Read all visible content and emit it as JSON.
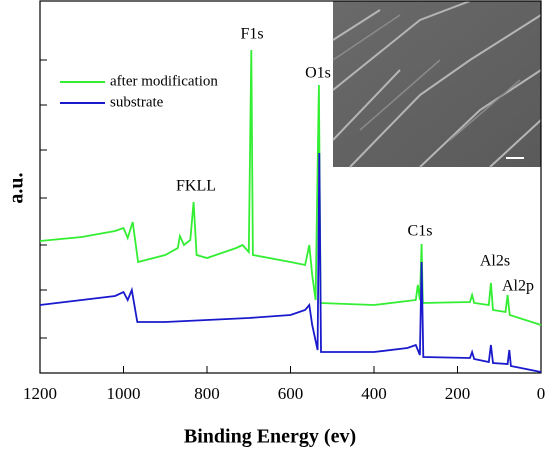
{
  "chart_data": {
    "type": "line",
    "x_label": "Binding Energy (ev)",
    "y_label": "a.u.",
    "xlim": [
      1200,
      0
    ],
    "ylim": [
      0,
      368
    ],
    "xticks": [
      1200,
      1000,
      800,
      600,
      400,
      200,
      0
    ],
    "legend": "upper left",
    "annotations": [
      "F1s",
      "O1s",
      "FKLL",
      "C1s",
      "Al2s",
      "Al2p"
    ],
    "series": [
      {
        "name": "after modification",
        "color": "#33ee33",
        "x": [
          1200,
          1100,
          1020,
          1000,
          990,
          978,
          965,
          900,
          870,
          865,
          855,
          840,
          832,
          825,
          800,
          730,
          715,
          700,
          694,
          690,
          600,
          565,
          555,
          548,
          540,
          532,
          528,
          400,
          300,
          295,
          290,
          286,
          283,
          170,
          165,
          160,
          125,
          120,
          115,
          85,
          80,
          75,
          0
        ],
        "values": [
          132,
          136,
          142,
          145,
          135,
          151,
          111,
          118,
          125,
          137,
          128,
          133,
          171,
          118,
          115,
          125,
          128,
          121,
          323,
          118,
          111,
          108,
          128,
          98,
          73,
          288,
          70,
          68,
          73,
          88,
          73,
          129,
          70,
          71,
          78,
          70,
          68,
          90,
          63,
          61,
          78,
          58,
          48
        ]
      },
      {
        "name": "substrate",
        "color": "#1a1acc",
        "x": [
          1200,
          1100,
          1020,
          1000,
          990,
          980,
          967,
          900,
          800,
          700,
          600,
          565,
          555,
          548,
          535,
          531,
          527,
          400,
          320,
          300,
          290,
          286,
          282,
          170,
          165,
          160,
          125,
          120,
          115,
          80,
          76,
          72,
          0
        ],
        "values": [
          68,
          73,
          77,
          81,
          73,
          83,
          51,
          51,
          53,
          55,
          58,
          63,
          68,
          48,
          23,
          220,
          21,
          21,
          25,
          28,
          18,
          111,
          16,
          15,
          21,
          14,
          11,
          28,
          10,
          9,
          23,
          7,
          1
        ]
      }
    ]
  }
}
